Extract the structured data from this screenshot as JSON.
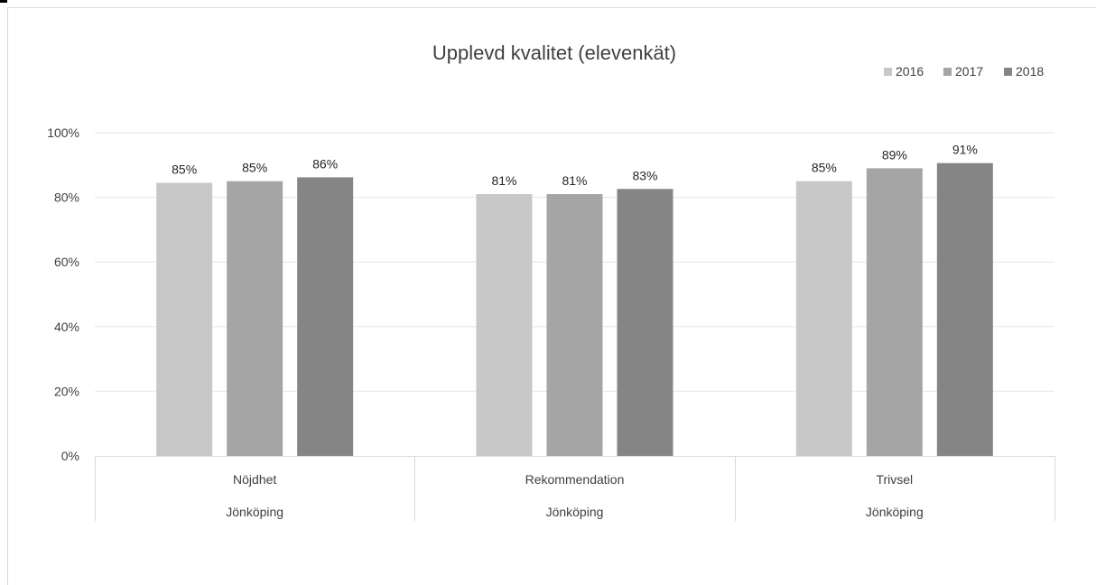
{
  "chart_data": {
    "type": "bar",
    "title": "Upplevd kvalitet (elevenkät)",
    "xlabel": "",
    "ylabel": "",
    "ylim": [
      0,
      100
    ],
    "yticks": [
      "0%",
      "20%",
      "40%",
      "60%",
      "80%",
      "100%"
    ],
    "ytick_values": [
      0,
      20,
      40,
      60,
      80,
      100
    ],
    "categories": [
      "Nöjdhet",
      "Rekommendation",
      "Trivsel"
    ],
    "group_label": "Jönköping",
    "series": [
      {
        "name": "2016",
        "values": [
          84.5,
          81,
          85
        ],
        "labels": [
          "85%",
          "81%",
          "85%"
        ],
        "color": "#c8c8c8"
      },
      {
        "name": "2017",
        "values": [
          85,
          81,
          89
        ],
        "labels": [
          "85%",
          "81%",
          "89%"
        ],
        "color": "#a5a5a5"
      },
      {
        "name": "2018",
        "values": [
          86.2,
          82.6,
          90.6
        ],
        "labels": [
          "86%",
          "83%",
          "91%"
        ],
        "color": "#858585"
      }
    ],
    "legend_position": "top-right",
    "grid": true
  }
}
